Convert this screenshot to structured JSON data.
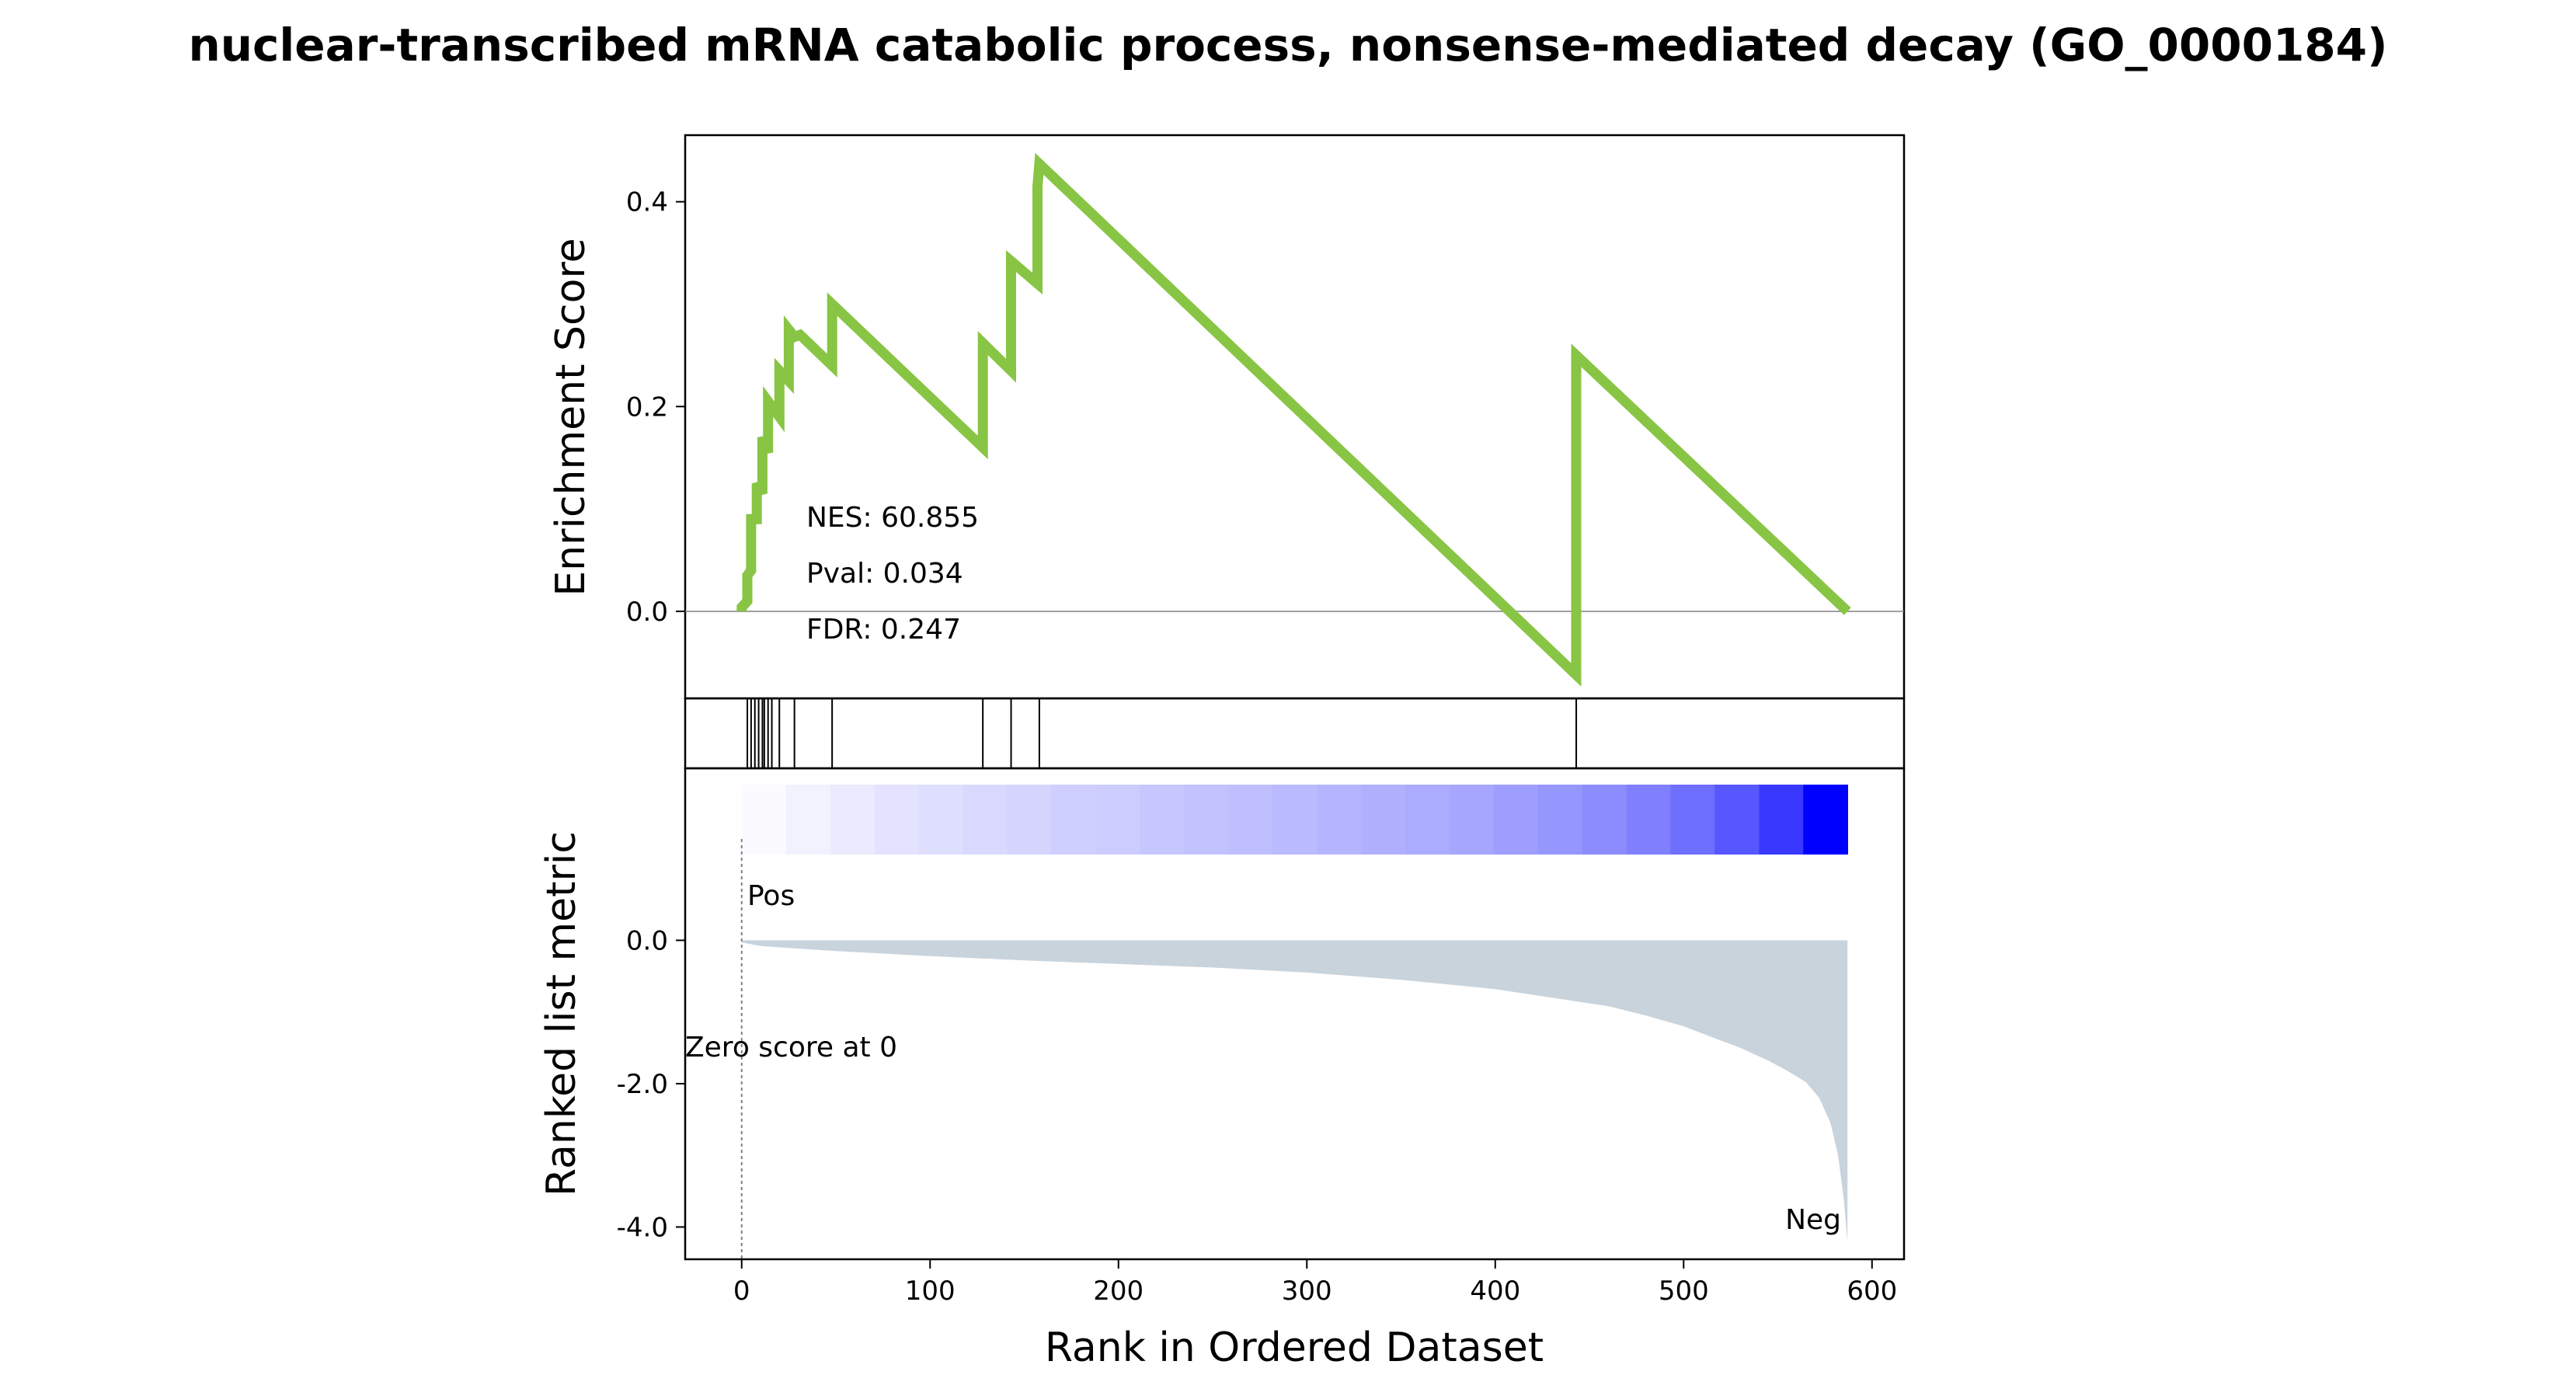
{
  "title": "nuclear-transcribed mRNA catabolic process, nonsense-mediated decay (GO_0000184)",
  "colors": {
    "es_line": "#88c544",
    "metric_fill": "#c9d3dc",
    "pos_label": "#ff0000",
    "neg_label": "#0000ff",
    "heatmap_low": "#ffffff",
    "heatmap_high": "#0000ff"
  },
  "chart_data": [
    {
      "type": "line",
      "panel": "enrichment-score",
      "ylabel": "Enrichment Score",
      "xlim": [
        -30,
        617
      ],
      "ylim": [
        -0.085,
        0.465
      ],
      "yticks": [
        0.0,
        0.2,
        0.4
      ],
      "ytick_labels": [
        "0.0",
        "0.2",
        "0.4"
      ],
      "grid": false,
      "baseline": 0.0,
      "series": [
        {
          "x": [
            0,
            0,
            3,
            3,
            5,
            5,
            8,
            8,
            11,
            11,
            14,
            14,
            20,
            20,
            25,
            25,
            28,
            28,
            31,
            48,
            48,
            128,
            128,
            143,
            143,
            157,
            157,
            158,
            443,
            443,
            587
          ],
          "y": [
            0.0,
            0.004,
            0.01,
            0.035,
            0.04,
            0.09,
            0.09,
            0.125,
            0.115,
            0.17,
            0.155,
            0.205,
            0.19,
            0.235,
            0.225,
            0.275,
            0.268,
            0.268,
            0.27,
            0.24,
            0.3,
            0.16,
            0.262,
            0.235,
            0.342,
            0.32,
            0.415,
            0.437,
            -0.062,
            0.25,
            0.0
          ]
        }
      ],
      "annotations": [
        "NES: 60.855",
        "Pval: 0.034",
        "FDR: 0.247"
      ]
    },
    {
      "type": "hits",
      "panel": "hit-markers",
      "positions": [
        3,
        5,
        7,
        9,
        11,
        12,
        14,
        16,
        20,
        28,
        48,
        128,
        143,
        158,
        443
      ]
    },
    {
      "type": "heatmap",
      "panel": "rank-metric-heatmap",
      "description_levels": [
        0.02,
        0.05,
        0.08,
        0.11,
        0.13,
        0.15,
        0.17,
        0.19,
        0.2,
        0.22,
        0.24,
        0.25,
        0.27,
        0.29,
        0.31,
        0.33,
        0.35,
        0.38,
        0.41,
        0.45,
        0.5,
        0.57,
        0.66,
        0.78,
        1.0
      ]
    },
    {
      "type": "area",
      "panel": "ranked-list-metric",
      "ylabel": "Ranked list metric",
      "xlabel": "Rank in Ordered Dataset",
      "xlim": [
        -30,
        617
      ],
      "ylim": [
        -4.45,
        2.4
      ],
      "xticks": [
        0,
        100,
        200,
        300,
        400,
        500,
        600
      ],
      "xtick_labels": [
        "0",
        "100",
        "200",
        "300",
        "400",
        "500",
        "600"
      ],
      "yticks": [
        0.0,
        -2.0,
        -4.0
      ],
      "ytick_labels": [
        "0.0",
        "-2.0",
        "-4.0"
      ],
      "x": [
        0,
        10,
        50,
        100,
        150,
        200,
        250,
        300,
        350,
        400,
        430,
        460,
        480,
        500,
        515,
        530,
        545,
        555,
        565,
        572,
        578,
        582,
        585,
        587
      ],
      "y": [
        -0.03,
        -0.08,
        -0.15,
        -0.22,
        -0.28,
        -0.33,
        -0.38,
        -0.45,
        -0.55,
        -0.68,
        -0.8,
        -0.92,
        -1.05,
        -1.2,
        -1.35,
        -1.5,
        -1.68,
        -1.82,
        -1.98,
        -2.2,
        -2.55,
        -3.0,
        -3.6,
        -4.2
      ],
      "zero_score_label": "Zero score at 0",
      "pos_label": "Pos",
      "neg_label": "Neg"
    }
  ]
}
